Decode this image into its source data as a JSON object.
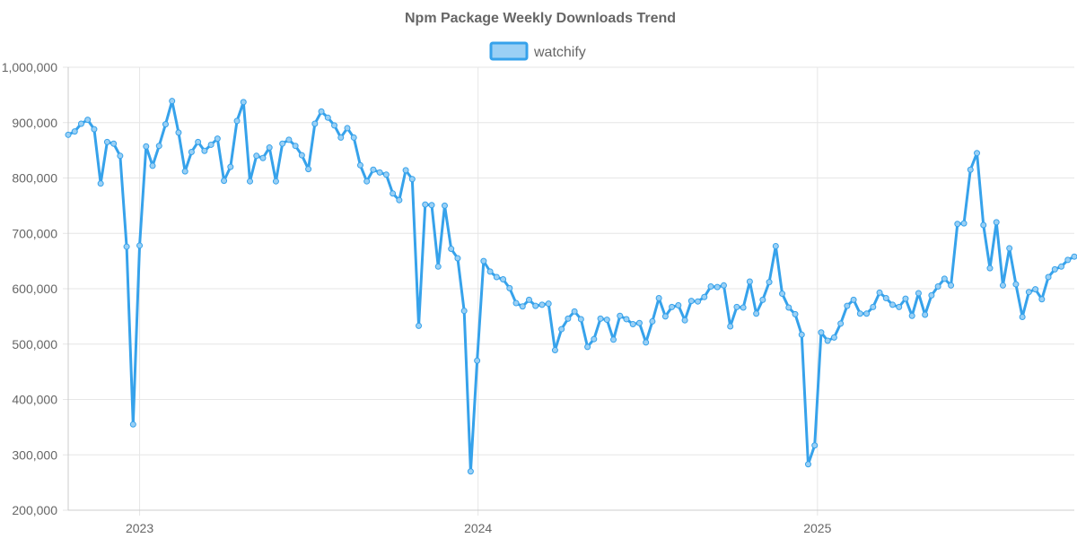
{
  "chart_data": {
    "type": "line",
    "title": "Npm Package Weekly Downloads Trend",
    "series": [
      {
        "name": "watchify",
        "color": "#36a2eb",
        "fill": "#9ad0f5",
        "x": [
          "2022-10-16",
          "2022-10-23",
          "2022-10-30",
          "2022-11-06",
          "2022-11-13",
          "2022-11-20",
          "2022-11-27",
          "2022-12-04",
          "2022-12-11",
          "2022-12-18",
          "2022-12-25",
          "2023-01-01",
          "2023-01-08",
          "2023-01-15",
          "2023-01-22",
          "2023-01-29",
          "2023-02-05",
          "2023-02-12",
          "2023-02-19",
          "2023-02-26",
          "2023-03-05",
          "2023-03-12",
          "2023-03-19",
          "2023-03-26",
          "2023-04-02",
          "2023-04-09",
          "2023-04-16",
          "2023-04-23",
          "2023-04-30",
          "2023-05-07",
          "2023-05-14",
          "2023-05-21",
          "2023-05-28",
          "2023-06-04",
          "2023-06-11",
          "2023-06-18",
          "2023-06-25",
          "2023-07-02",
          "2023-07-09",
          "2023-07-16",
          "2023-07-23",
          "2023-07-30",
          "2023-08-06",
          "2023-08-13",
          "2023-08-20",
          "2023-08-27",
          "2023-09-03",
          "2023-09-10",
          "2023-09-17",
          "2023-09-24",
          "2023-10-01",
          "2023-10-08",
          "2023-10-15",
          "2023-10-22",
          "2023-10-29",
          "2023-11-05",
          "2023-11-12",
          "2023-11-19",
          "2023-11-26",
          "2023-12-03",
          "2023-12-10",
          "2023-12-17",
          "2023-12-24",
          "2023-12-31",
          "2024-01-07",
          "2024-01-14",
          "2024-01-21",
          "2024-01-28",
          "2024-02-04",
          "2024-02-11",
          "2024-02-18",
          "2024-02-25",
          "2024-03-03",
          "2024-03-10",
          "2024-03-17",
          "2024-03-24",
          "2024-03-31",
          "2024-04-07",
          "2024-04-14",
          "2024-04-21",
          "2024-04-28",
          "2024-05-05",
          "2024-05-12",
          "2024-05-19",
          "2024-05-26",
          "2024-06-02",
          "2024-06-09",
          "2024-06-16",
          "2024-06-23",
          "2024-06-30",
          "2024-07-07",
          "2024-07-14",
          "2024-07-21",
          "2024-07-28",
          "2024-08-04",
          "2024-08-11",
          "2024-08-18",
          "2024-08-25",
          "2024-09-01",
          "2024-09-08",
          "2024-09-15",
          "2024-09-22",
          "2024-09-29",
          "2024-10-06",
          "2024-10-13",
          "2024-10-20",
          "2024-10-27",
          "2024-11-03",
          "2024-11-10",
          "2024-11-17",
          "2024-11-24",
          "2024-12-01",
          "2024-12-08",
          "2024-12-15",
          "2024-12-22",
          "2024-12-29",
          "2025-01-05",
          "2025-01-12",
          "2025-01-19",
          "2025-01-26",
          "2025-02-02",
          "2025-02-09",
          "2025-02-16",
          "2025-02-23",
          "2025-03-02",
          "2025-03-09",
          "2025-03-16",
          "2025-03-23",
          "2025-03-30",
          "2025-04-06",
          "2025-04-13",
          "2025-04-20",
          "2025-04-27",
          "2025-05-04",
          "2025-05-11",
          "2025-05-18",
          "2025-05-25",
          "2025-06-01",
          "2025-06-08",
          "2025-06-15",
          "2025-06-22",
          "2025-06-29",
          "2025-07-06",
          "2025-07-13",
          "2025-07-20",
          "2025-07-27",
          "2025-08-03",
          "2025-08-10",
          "2025-08-17",
          "2025-08-24",
          "2025-08-31",
          "2025-09-07",
          "2025-09-14",
          "2025-09-21",
          "2025-09-28",
          "2025-10-05"
        ],
        "values": [
          878000,
          884000,
          898000,
          905000,
          888000,
          790000,
          865000,
          862000,
          840000,
          676000,
          355000,
          678000,
          857000,
          822000,
          858000,
          897000,
          939000,
          882000,
          812000,
          847000,
          865000,
          849000,
          860000,
          871000,
          795000,
          820000,
          903000,
          937000,
          794000,
          840000,
          836000,
          855000,
          794000,
          862000,
          869000,
          858000,
          841000,
          816000,
          898000,
          920000,
          909000,
          895000,
          873000,
          890000,
          873000,
          823000,
          794000,
          815000,
          810000,
          806000,
          772000,
          760000,
          814000,
          798000,
          533000,
          752000,
          751000,
          640000,
          750000,
          672000,
          655000,
          560000,
          270000,
          470000,
          650000,
          631000,
          621000,
          617000,
          601000,
          574000,
          568000,
          580000,
          569000,
          571000,
          573000,
          489000,
          527000,
          546000,
          559000,
          545000,
          495000,
          509000,
          546000,
          544000,
          508000,
          551000,
          545000,
          536000,
          538000,
          503000,
          541000,
          583000,
          550000,
          567000,
          570000,
          543000,
          578000,
          577000,
          585000,
          604000,
          603000,
          606000,
          532000,
          567000,
          566000,
          613000,
          555000,
          580000,
          612000,
          677000,
          591000,
          566000,
          554000,
          517000,
          283000,
          317000,
          521000,
          506000,
          512000,
          537000,
          569000,
          580000,
          555000,
          555000,
          567000,
          593000,
          583000,
          571000,
          567000,
          582000,
          551000,
          592000,
          553000,
          588000,
          604000,
          618000,
          606000,
          717000,
          718000,
          815000,
          845000,
          715000,
          637000,
          720000,
          606000,
          673000,
          608000,
          549000,
          594000,
          599000,
          581000,
          621000,
          635000,
          640000,
          652000,
          658000
        ]
      }
    ],
    "x_ticks": [
      {
        "value": "2023-01-01",
        "label": "2023"
      },
      {
        "value": "2024-01-01",
        "label": "2024"
      },
      {
        "value": "2025-01-01",
        "label": "2025"
      }
    ],
    "xlim": [
      "2022-10-16",
      "2025-10-05"
    ],
    "ylim": [
      200000,
      1000000
    ],
    "y_ticks": [
      200000,
      300000,
      400000,
      500000,
      600000,
      700000,
      800000,
      900000,
      1000000
    ],
    "grid": true,
    "legend_position": "top"
  }
}
